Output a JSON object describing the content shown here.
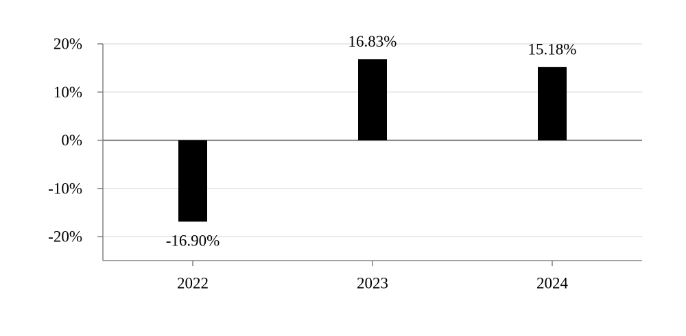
{
  "chart_data": {
    "type": "bar",
    "categories": [
      "2022",
      "2023",
      "2024"
    ],
    "series": [
      {
        "values": [
          -16.9,
          16.83,
          15.18
        ],
        "color": "#000000",
        "data_labels": [
          "-16.90%",
          "16.83%",
          "15.18%"
        ]
      }
    ],
    "title": "",
    "xlabel": "",
    "ylabel": "",
    "ylim": [
      -25,
      20
    ],
    "yticks": [
      20,
      10,
      0,
      -10,
      -20
    ],
    "ytick_labels": [
      "20%",
      "10%",
      "0%",
      "-10%",
      "-20%"
    ],
    "grid": true,
    "legend": "none"
  }
}
